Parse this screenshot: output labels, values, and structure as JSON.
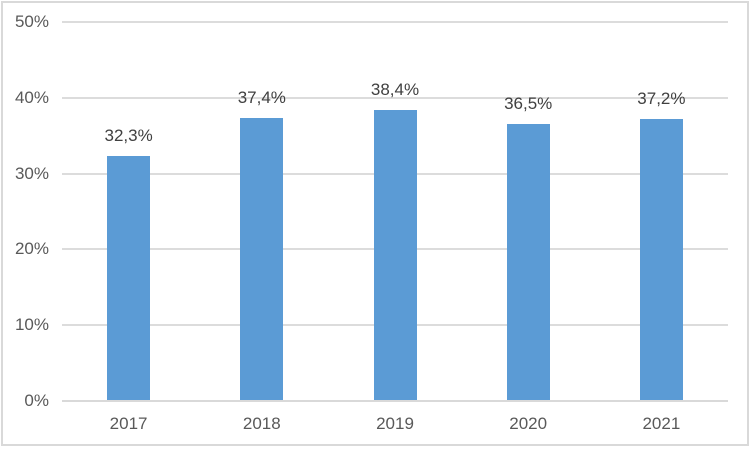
{
  "chart_data": {
    "type": "bar",
    "title": "",
    "categories": [
      "2017",
      "2018",
      "2019",
      "2020",
      "2021"
    ],
    "values": [
      32.3,
      37.4,
      38.4,
      36.5,
      37.2
    ],
    "data_labels": [
      "32,3%",
      "37,4%",
      "38,4%",
      "36,5%",
      "37,2%"
    ],
    "y_ticks": [
      {
        "value": 0,
        "label": "0%"
      },
      {
        "value": 10,
        "label": "10%"
      },
      {
        "value": 20,
        "label": "20%"
      },
      {
        "value": 30,
        "label": "30%"
      },
      {
        "value": 40,
        "label": "40%"
      },
      {
        "value": 50,
        "label": "50%"
      }
    ],
    "ylim": [
      0,
      50
    ],
    "xlabel": "",
    "ylabel": "",
    "grid": true,
    "legend_position": "none",
    "colors": {
      "bar": "#5B9BD5",
      "gridline": "#DCDCDC",
      "axis_line": "#D9D9D9",
      "tick_text": "#595959",
      "data_label_text": "#404040",
      "category_text": "#595959",
      "chart_border": "#D9D9D9",
      "background": "#FFFFFF"
    }
  }
}
